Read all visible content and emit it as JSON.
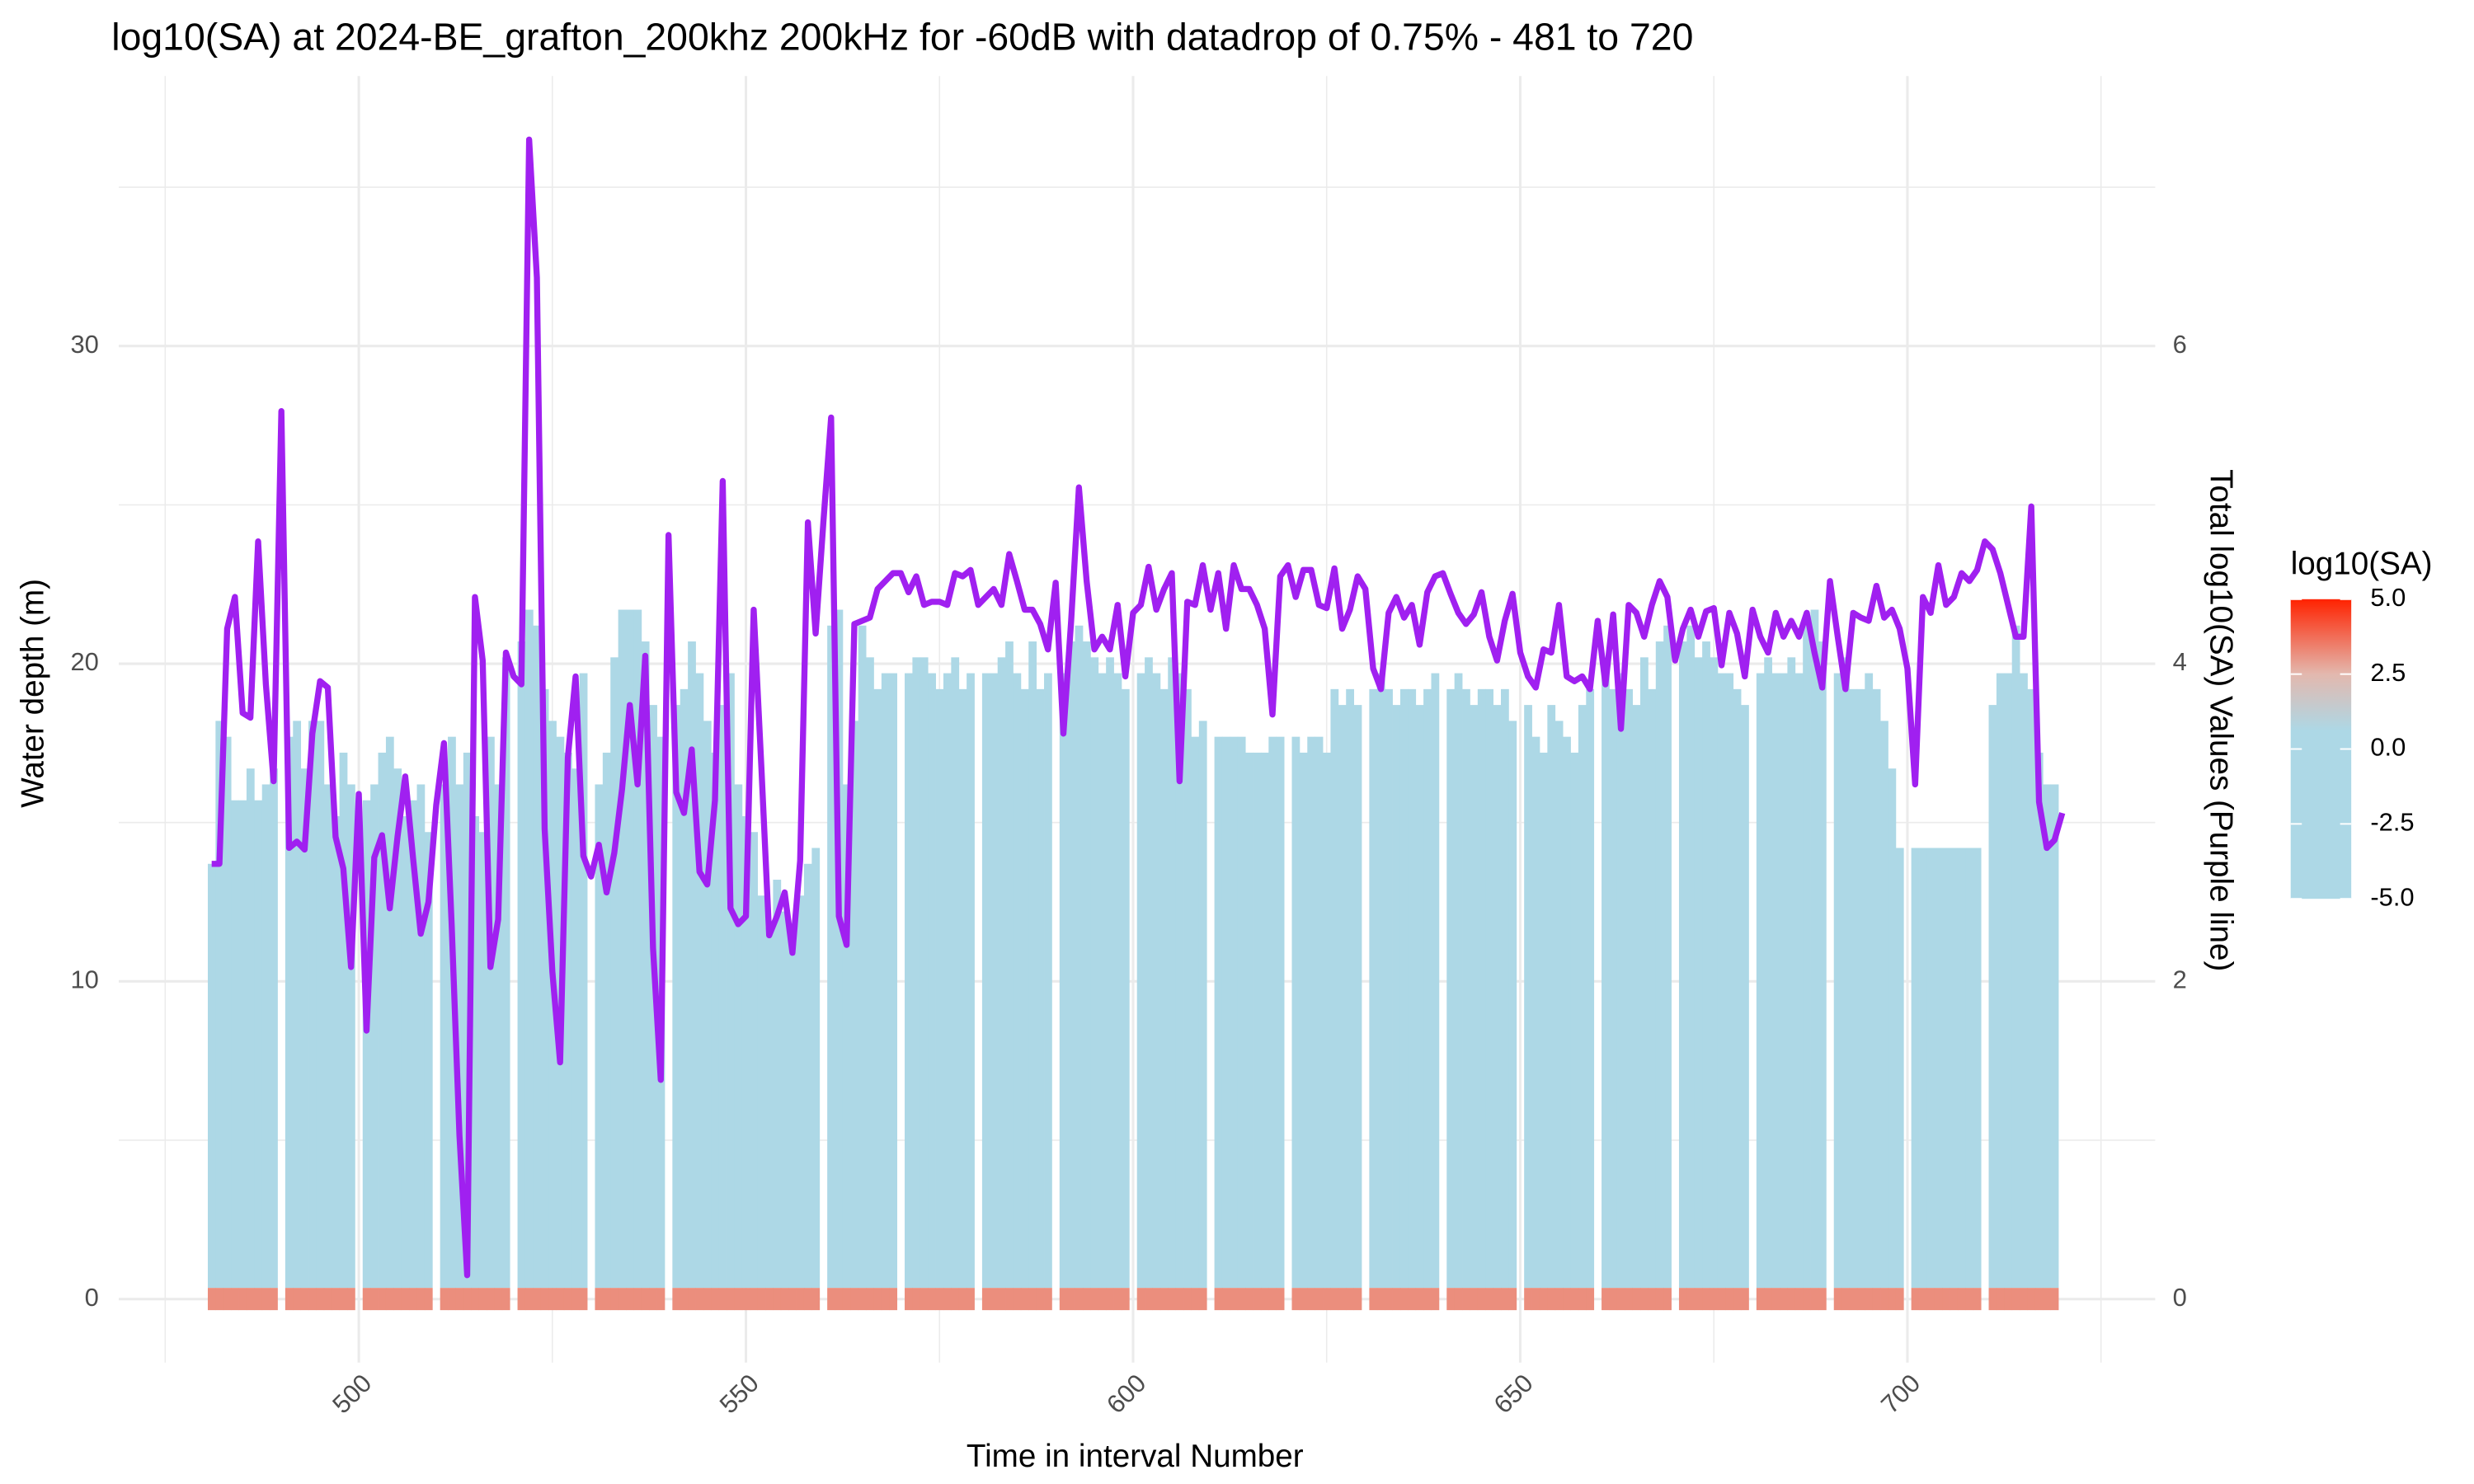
{
  "chart_data": {
    "type": "heatmap",
    "title": "log10(SA) at 2024-BE_grafton_200khz 200kHz for -60dB with datadrop of 0.75% - 481 to 720",
    "xlabel": "Time in interval Number",
    "ylabel": "Water depth (m)",
    "y2label": "Total log10(SA) Values (Purple line)",
    "xlim": [
      469,
      732
    ],
    "ylim": [
      -2,
      38.5
    ],
    "y2lim": [
      -0.4,
      7.7
    ],
    "xticks": [
      500,
      550,
      600,
      650,
      700
    ],
    "yticks": [
      0,
      10,
      20,
      30
    ],
    "y2ticks": [
      0,
      2,
      4,
      6
    ],
    "x_minor_ticks": [
      475,
      525,
      575,
      625,
      675,
      725
    ],
    "y_minor_ticks": [
      5,
      15,
      25,
      35
    ],
    "grid": true,
    "x": [
      481,
      482,
      483,
      484,
      485,
      486,
      487,
      488,
      489,
      490,
      491,
      492,
      493,
      494,
      495,
      496,
      497,
      498,
      499,
      500,
      501,
      502,
      503,
      504,
      505,
      506,
      507,
      508,
      509,
      510,
      511,
      512,
      513,
      514,
      515,
      516,
      517,
      518,
      519,
      520,
      521,
      522,
      523,
      524,
      525,
      526,
      527,
      528,
      529,
      530,
      531,
      532,
      533,
      534,
      535,
      536,
      537,
      538,
      539,
      540,
      541,
      542,
      543,
      544,
      545,
      546,
      547,
      548,
      549,
      550,
      551,
      552,
      553,
      554,
      555,
      556,
      557,
      558,
      559,
      560,
      561,
      562,
      563,
      564,
      565,
      566,
      567,
      568,
      569,
      570,
      571,
      572,
      573,
      574,
      575,
      576,
      577,
      578,
      579,
      580,
      581,
      582,
      583,
      584,
      585,
      586,
      587,
      588,
      589,
      590,
      591,
      592,
      593,
      594,
      595,
      596,
      597,
      598,
      599,
      600,
      601,
      602,
      603,
      604,
      605,
      606,
      607,
      608,
      609,
      610,
      611,
      612,
      613,
      614,
      615,
      616,
      617,
      618,
      619,
      620,
      621,
      622,
      623,
      624,
      625,
      626,
      627,
      628,
      629,
      630,
      631,
      632,
      633,
      634,
      635,
      636,
      637,
      638,
      639,
      640,
      641,
      642,
      643,
      644,
      645,
      646,
      647,
      648,
      649,
      650,
      651,
      652,
      653,
      654,
      655,
      656,
      657,
      658,
      659,
      660,
      661,
      662,
      663,
      664,
      665,
      666,
      667,
      668,
      669,
      670,
      671,
      672,
      673,
      674,
      675,
      676,
      677,
      678,
      679,
      680,
      681,
      682,
      683,
      684,
      685,
      686,
      687,
      688,
      689,
      690,
      691,
      692,
      693,
      694,
      695,
      696,
      697,
      698,
      699,
      700,
      701,
      702,
      703,
      704,
      705,
      706,
      707,
      708,
      709,
      710,
      711,
      712,
      713,
      714,
      715,
      716,
      717,
      718,
      719,
      720
    ],
    "heatmap": {
      "fill_value": -5,
      "surface_value": 3.2,
      "depth": [
        13.7,
        18.2,
        17.7,
        15.7,
        15.7,
        16.7,
        15.7,
        16.2,
        16.7,
        null,
        17.7,
        18.2,
        16.7,
        18.2,
        18.2,
        16.2,
        15.2,
        17.2,
        16.2,
        null,
        15.7,
        16.2,
        17.2,
        17.7,
        16.7,
        15.2,
        15.7,
        16.2,
        14.7,
        null,
        16.2,
        17.7,
        16.2,
        17.2,
        15.2,
        14.7,
        17.7,
        16.2,
        20.2,
        null,
        20.7,
        21.7,
        21.2,
        19.2,
        18.2,
        17.7,
        17.2,
        16.7,
        19.7,
        null,
        16.2,
        17.2,
        20.2,
        21.7,
        21.7,
        21.7,
        20.7,
        18.7,
        17.7,
        null,
        18.7,
        19.2,
        20.7,
        19.7,
        18.2,
        17.2,
        18.7,
        19.7,
        16.2,
        15.2,
        14.7,
        12.7,
        11.7,
        13.2,
        12.2,
        11.2,
        12.7,
        13.7,
        14.2,
        null,
        21.2,
        21.7,
        16.2,
        18.2,
        21.2,
        20.2,
        19.2,
        19.7,
        19.7,
        null,
        19.7,
        20.2,
        20.2,
        19.7,
        19.2,
        19.7,
        20.2,
        19.2,
        19.7,
        null,
        19.7,
        19.7,
        20.2,
        20.7,
        19.7,
        19.2,
        20.7,
        19.2,
        19.7,
        null,
        19.7,
        20.7,
        21.2,
        20.7,
        20.2,
        19.7,
        20.2,
        19.7,
        19.2,
        null,
        19.7,
        20.2,
        19.7,
        19.2,
        20.2,
        19.7,
        19.2,
        17.7,
        18.2,
        null,
        17.7,
        17.7,
        17.7,
        17.7,
        17.2,
        17.2,
        17.2,
        17.7,
        17.7,
        null,
        17.7,
        17.2,
        17.7,
        17.7,
        17.2,
        19.2,
        18.7,
        19.2,
        18.7,
        null,
        19.2,
        19.7,
        19.2,
        18.7,
        19.2,
        19.2,
        18.7,
        19.2,
        19.7,
        null,
        19.2,
        19.7,
        19.2,
        18.7,
        19.2,
        19.2,
        18.7,
        19.2,
        18.2,
        null,
        18.7,
        17.7,
        17.2,
        18.7,
        18.2,
        17.7,
        17.2,
        18.7,
        19.2,
        null,
        19.7,
        19.2,
        19.7,
        19.2,
        18.7,
        20.2,
        19.2,
        20.7,
        21.2,
        null,
        20.7,
        21.2,
        20.2,
        20.7,
        20.2,
        19.7,
        19.7,
        19.2,
        18.7,
        null,
        19.7,
        20.2,
        19.7,
        19.7,
        20.2,
        19.7,
        21.2,
        21.7,
        20.7,
        null,
        19.7,
        20.2,
        19.2,
        19.2,
        19.7,
        19.2,
        18.2,
        16.7,
        14.2,
        null,
        14.2,
        14.2,
        14.2,
        14.2,
        14.2,
        14.2,
        14.2,
        14.2,
        14.2,
        null,
        18.7,
        19.7,
        19.7,
        21.2,
        19.7,
        19.2,
        17.2,
        16.2,
        16.2,
        null
      ]
    },
    "line": {
      "color": "#a020f0",
      "axis": "y2",
      "values": [
        2.74,
        2.74,
        4.22,
        4.42,
        3.69,
        3.66,
        4.77,
        3.87,
        3.26,
        5.59,
        2.84,
        2.88,
        2.83,
        3.56,
        3.89,
        3.85,
        2.91,
        2.71,
        2.09,
        3.18,
        1.69,
        2.78,
        2.92,
        2.46,
        2.91,
        3.29,
        2.78,
        2.3,
        2.5,
        3.11,
        3.5,
        2.35,
        1.03,
        0.15,
        4.42,
        4.02,
        2.09,
        2.39,
        4.07,
        3.92,
        3.87,
        7.3,
        6.43,
        2.96,
        2.06,
        1.49,
        3.41,
        3.92,
        2.79,
        2.66,
        2.86,
        2.56,
        2.81,
        3.21,
        3.74,
        3.24,
        4.05,
        2.21,
        1.38,
        4.81,
        3.19,
        3.06,
        3.46,
        2.69,
        2.61,
        3.14,
        5.15,
        2.46,
        2.36,
        2.41,
        4.34,
        3.34,
        2.29,
        2.41,
        2.56,
        2.18,
        2.76,
        4.89,
        4.19,
        4.89,
        5.55,
        2.41,
        2.23,
        4.25,
        4.27,
        4.29,
        4.47,
        4.52,
        4.57,
        4.57,
        4.45,
        4.55,
        4.37,
        4.39,
        4.39,
        4.37,
        4.57,
        4.55,
        4.59,
        4.37,
        4.42,
        4.47,
        4.37,
        4.69,
        4.52,
        4.34,
        4.34,
        4.25,
        4.09,
        4.51,
        3.56,
        4.27,
        5.11,
        4.52,
        4.09,
        4.17,
        4.09,
        4.37,
        3.92,
        4.32,
        4.37,
        4.61,
        4.34,
        4.47,
        4.57,
        3.26,
        4.39,
        4.37,
        4.62,
        4.34,
        4.57,
        4.22,
        4.62,
        4.47,
        4.47,
        4.37,
        4.22,
        3.68,
        4.55,
        4.62,
        4.42,
        4.59,
        4.59,
        4.37,
        4.35,
        4.6,
        4.22,
        4.34,
        4.55,
        4.47,
        3.97,
        3.84,
        4.32,
        4.42,
        4.29,
        4.37,
        4.12,
        4.45,
        4.55,
        4.57,
        4.44,
        4.32,
        4.25,
        4.31,
        4.45,
        4.17,
        4.02,
        4.27,
        4.44,
        4.07,
        3.92,
        3.85,
        4.09,
        4.07,
        4.37,
        3.92,
        3.89,
        3.92,
        3.84,
        4.27,
        3.87,
        4.31,
        3.59,
        4.37,
        4.32,
        4.17,
        4.37,
        4.52,
        4.42,
        4.02,
        4.22,
        4.34,
        4.17,
        4.33,
        4.35,
        3.99,
        4.32,
        4.19,
        3.92,
        4.34,
        4.17,
        4.07,
        4.32,
        4.17,
        4.27,
        4.17,
        4.32,
        4.07,
        3.85,
        4.52,
        4.17,
        3.84,
        4.32,
        4.29,
        4.27,
        4.49,
        4.29,
        4.34,
        4.22,
        3.97,
        3.24,
        4.42,
        4.32,
        4.62,
        4.37,
        4.42,
        4.57,
        4.52,
        4.59,
        4.77,
        4.72,
        4.57,
        4.37,
        4.17,
        4.17,
        4.99,
        3.13,
        2.84,
        2.89,
        3.06
      ]
    },
    "colorbar": {
      "title": "log10(SA)",
      "lim": [
        -5,
        5
      ],
      "ticks": [
        {
          "value": 5,
          "label": "5.0"
        },
        {
          "value": 2.5,
          "label": "2.5"
        },
        {
          "value": 0,
          "label": "0.0"
        },
        {
          "value": -2.5,
          "label": "-2.5"
        },
        {
          "value": -5,
          "label": "-5.0"
        }
      ],
      "colors": [
        {
          "value": -5,
          "color": "#add8e6"
        },
        {
          "value": 0.6,
          "color": "#add8e6"
        },
        {
          "value": 2.5,
          "color": "#e3b8ae"
        },
        {
          "value": 5,
          "color": "#ff2200"
        }
      ]
    }
  }
}
